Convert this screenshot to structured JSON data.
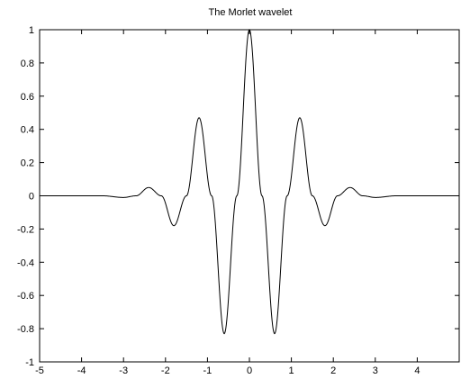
{
  "chart_data": {
    "type": "line",
    "title": "The Morlet wavelet",
    "xlabel": "",
    "ylabel": "",
    "xlim": [
      -5,
      5
    ],
    "ylim": [
      -1,
      1
    ],
    "x_ticks": [
      "-5",
      "-4",
      "-3",
      "-2",
      "-1",
      "0",
      "1",
      "2",
      "3",
      "4"
    ],
    "y_ticks": [
      "-1",
      "-0.8",
      "-0.6",
      "-0.4",
      "-0.2",
      "0",
      "0.2",
      "0.4",
      "0.6",
      "0.8",
      "1"
    ],
    "grid": false,
    "legend": "none",
    "line_color": "#000000",
    "series": [
      {
        "x": [
          -5,
          -4.5,
          -4,
          -3.5,
          -3,
          -2.7,
          -2.4,
          -2.1,
          -1.8,
          -1.5,
          -1.2,
          -0.9,
          -0.6,
          -0.3,
          0,
          0.3,
          0.6,
          0.9,
          1.2,
          1.5,
          1.8,
          2.1,
          2.4,
          2.7,
          3,
          3.5,
          4,
          4.5,
          5
        ],
        "y": [
          0,
          0,
          0,
          0,
          -0.01,
          0,
          0.05,
          0,
          -0.18,
          0,
          0.47,
          0,
          -0.83,
          0,
          1,
          0,
          -0.83,
          0,
          0.47,
          0,
          -0.18,
          0,
          0.05,
          0,
          -0.01,
          0,
          0,
          0,
          0
        ]
      }
    ]
  }
}
